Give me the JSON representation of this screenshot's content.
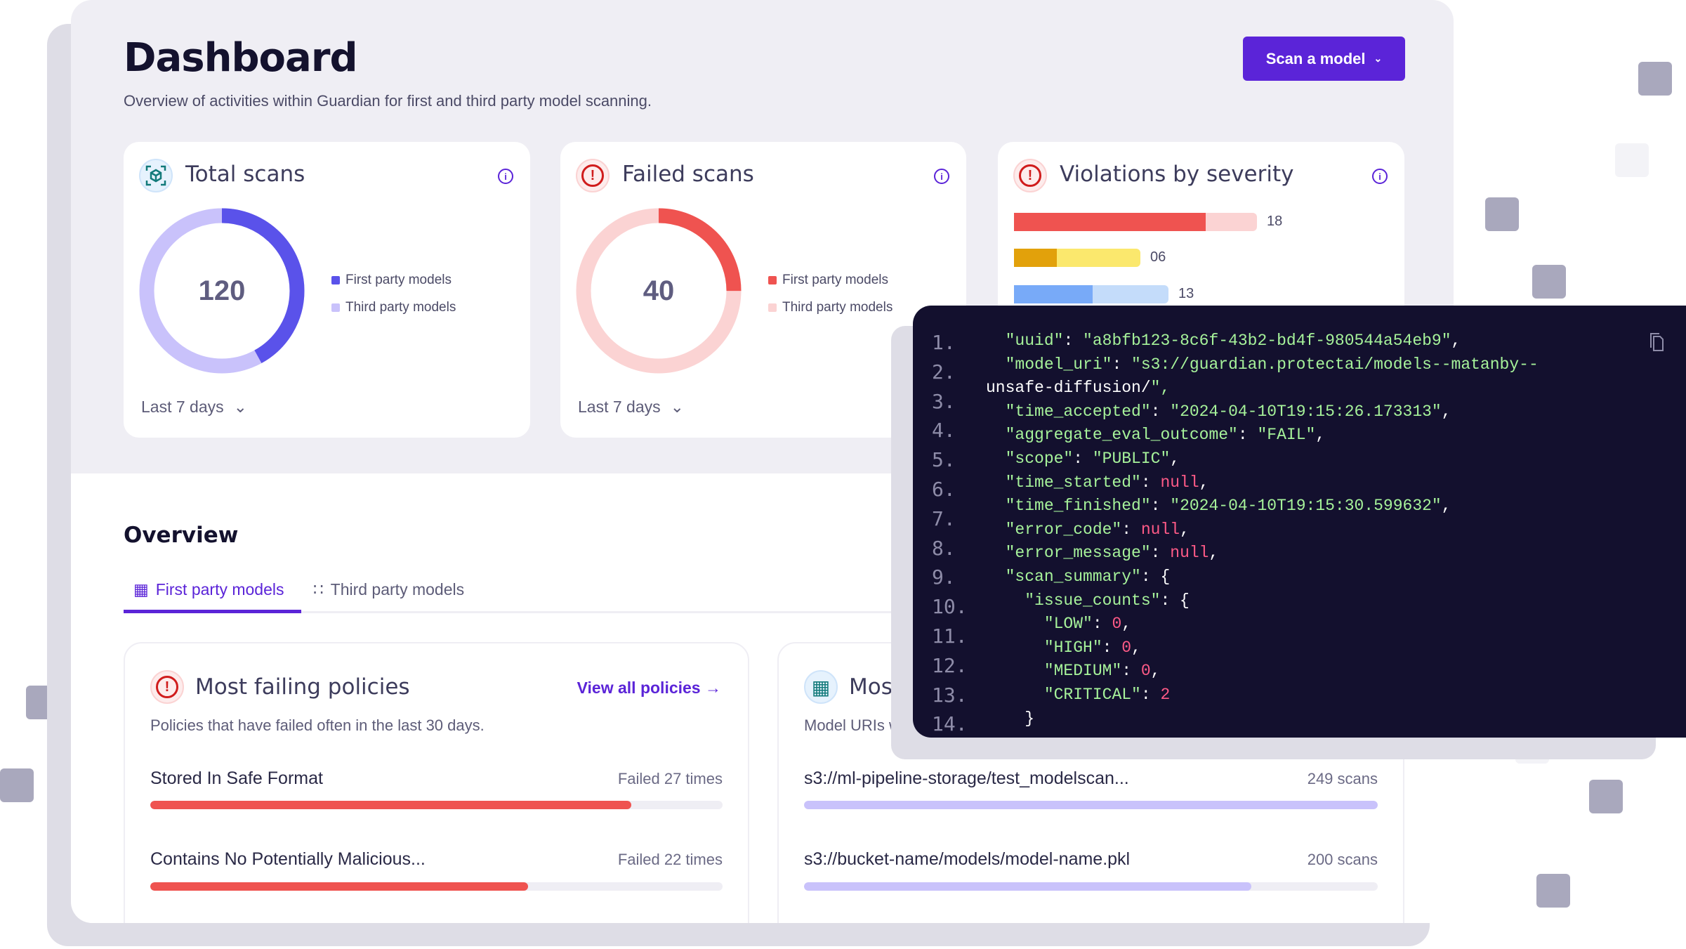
{
  "header": {
    "title": "Dashboard",
    "subtitle": "Overview of activities within Guardian for first and third party model scanning.",
    "scan_button": "Scan a model"
  },
  "cards": {
    "total": {
      "title": "Total scans",
      "value": "120",
      "first_fraction": 0.42,
      "legend": [
        "First party models",
        "Third party models"
      ],
      "period": "Last 7 days",
      "colors": [
        "#5a52ea",
        "#c9c2fb"
      ]
    },
    "failed": {
      "title": "Failed scans",
      "value": "40",
      "first_fraction": 0.25,
      "legend": [
        "First party models",
        "Third party models"
      ],
      "period": "Last 7 days",
      "colors": [
        "#ef5350",
        "#fbd3d3"
      ]
    },
    "violations": {
      "title": "Violations by severity",
      "bars": [
        {
          "value": "18",
          "fill_fraction": 0.79,
          "colors": [
            "#ef5350",
            "#fbd3d3"
          ]
        },
        {
          "value": "06",
          "fill_fraction": 0.34,
          "colors": [
            "#e2a10b",
            "#fbe86d"
          ]
        },
        {
          "value": "13",
          "fill_fraction": 0.51,
          "colors": [
            "#78aaf8",
            "#c4dcfa"
          ]
        }
      ]
    }
  },
  "overview": {
    "title": "Overview",
    "tabs": [
      "First party models",
      "Third party models"
    ],
    "policies": {
      "title": "Most failing policies",
      "link": "View all policies",
      "subtitle": "Policies that have failed often in the last 30 days.",
      "rows": [
        {
          "label": "Stored In Safe Format",
          "value": "Failed 27 times",
          "fraction": 0.84
        },
        {
          "label": "Contains No Potentially Malicious...",
          "value": "Failed 22 times",
          "fraction": 0.66
        }
      ]
    },
    "models": {
      "title": "Most p",
      "subtitle": "Model URIs w",
      "rows": [
        {
          "label": "s3://ml-pipeline-storage/test_modelscan...",
          "value": "249 scans",
          "fraction": 1.0
        },
        {
          "label": "s3://bucket-name/models/model-name.pkl",
          "value": "200 scans",
          "fraction": 0.78
        }
      ]
    }
  },
  "code": {
    "line_numbers": [
      "1.",
      "2.",
      "3.",
      "4.",
      "5.",
      "6.",
      "7.",
      "8.",
      "9.",
      "10.",
      "11.",
      "12.",
      "13.",
      "14."
    ],
    "lines": [
      "  \"uuid\": \"a8bfb123-8c6f-43b2-bd4f-980544a54eb9\",",
      "  \"model_uri\": \"s3://guardian.protectai/models--matanby--",
      "unsafe-diffusion/\",",
      "  \"time_accepted\": \"2024-04-10T19:15:26.173313\",",
      "  \"aggregate_eval_outcome\": \"FAIL\",",
      "  \"scope\": \"PUBLIC\",",
      "  \"time_started\": null,",
      "  \"time_finished\": \"2024-04-10T19:15:30.599632\",",
      "  \"error_code\": null,",
      "  \"error_message\": null,",
      "  \"scan_summary\": {",
      "    \"issue_counts\": {",
      "      \"LOW\": 0,",
      "      \"HIGH\": 0,",
      "      \"MEDIUM\": 0,",
      "      \"CRITICAL\": 2",
      "    }"
    ]
  }
}
